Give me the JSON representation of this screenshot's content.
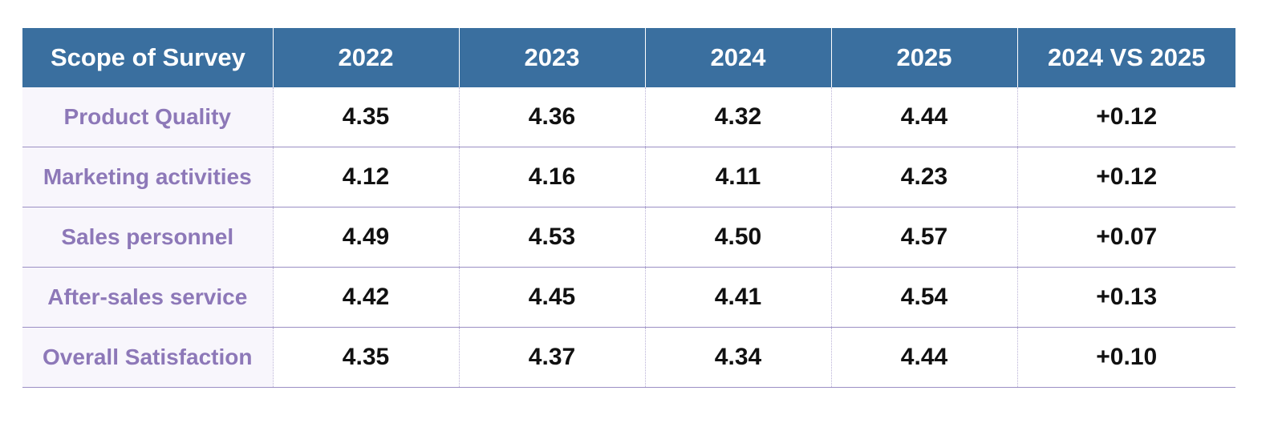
{
  "table": {
    "headers": [
      "Scope of Survey",
      "2022",
      "2023",
      "2024",
      "2025",
      "2024 VS 2025"
    ],
    "rows": [
      {
        "label": "Product Quality",
        "values": [
          "4.35",
          "4.36",
          "4.32",
          "4.44",
          "+0.12"
        ]
      },
      {
        "label": "Marketing activities",
        "values": [
          "4.12",
          "4.16",
          "4.11",
          "4.23",
          "+0.12"
        ]
      },
      {
        "label": "Sales personnel",
        "values": [
          "4.49",
          "4.53",
          "4.50",
          "4.57",
          "+0.07"
        ]
      },
      {
        "label": "After-sales service",
        "values": [
          "4.42",
          "4.45",
          "4.41",
          "4.54",
          "+0.13"
        ]
      },
      {
        "label": "Overall Satisfaction",
        "values": [
          "4.35",
          "4.37",
          "4.34",
          "4.44",
          "+0.10"
        ]
      }
    ]
  },
  "colors": {
    "header_bg": "#3a6f9f",
    "header_text": "#ffffff",
    "row_label_text": "#8d78b8",
    "row_divider": "#9b8fc4",
    "value_text": "#111111"
  }
}
